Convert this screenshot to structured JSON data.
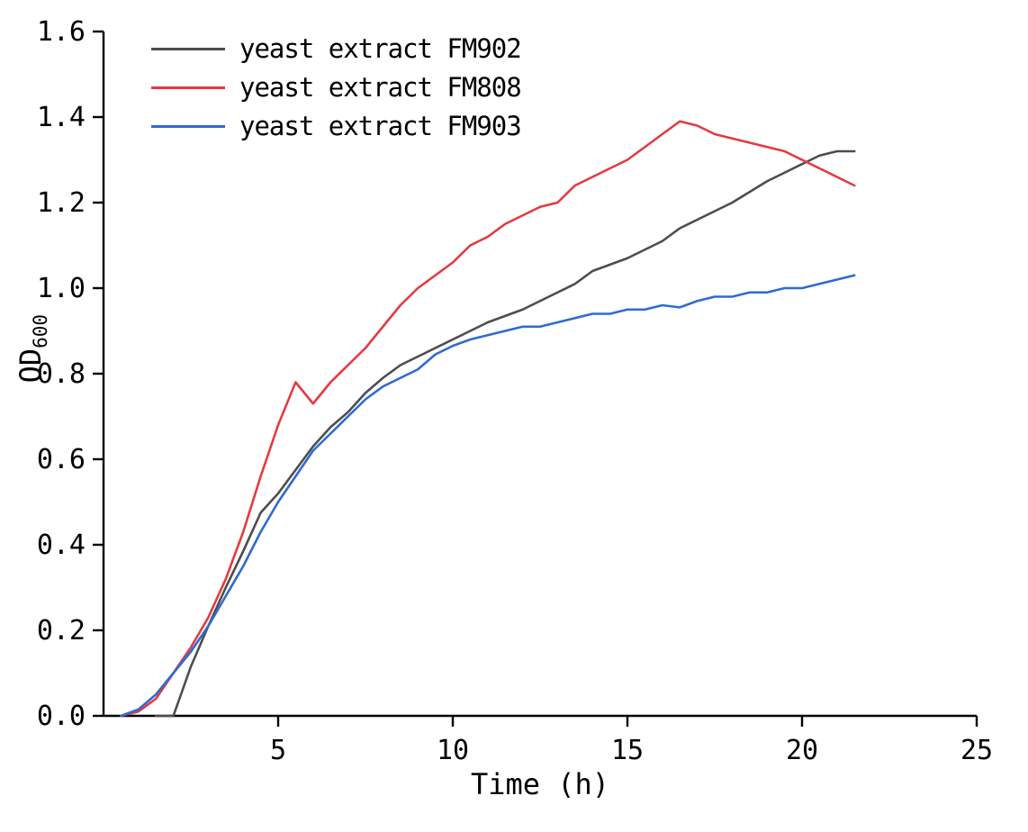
{
  "chart_data": {
    "type": "line",
    "title": "",
    "xlabel": "Time (h)",
    "ylabel": "OD",
    "ylabel_subscript": "600",
    "xlim": [
      0,
      25
    ],
    "ylim": [
      0.0,
      1.6
    ],
    "xticks": [
      5,
      10,
      15,
      20,
      25
    ],
    "xtick_labels": [
      "5",
      "10",
      "15",
      "20",
      "25"
    ],
    "yticks": [
      0.0,
      0.2,
      0.4,
      0.6,
      0.8,
      1.0,
      1.2,
      1.4,
      1.6
    ],
    "ytick_labels": [
      "0.0",
      "0.2",
      "0.4",
      "0.6",
      "0.8",
      "1.0",
      "1.2",
      "1.4",
      "1.6"
    ],
    "grid": false,
    "legend_position": "top-left",
    "axis_color": "#000000",
    "series": [
      {
        "name": "yeast extract FM902",
        "color": "#4d4d4d",
        "x": [
          1.5,
          2,
          2.5,
          3,
          3.5,
          4,
          4.5,
          5,
          5.5,
          6,
          6.5,
          7,
          7.5,
          8,
          8.5,
          9,
          9.5,
          10,
          10.5,
          11,
          11.5,
          12,
          12.5,
          13,
          13.5,
          14,
          14.5,
          15,
          15.5,
          16,
          16.5,
          17,
          17.5,
          18,
          18.5,
          19,
          19.5,
          20,
          20.5,
          21,
          21.5
        ],
        "y": [
          0,
          0,
          0.115,
          0.21,
          0.3,
          0.385,
          0.475,
          0.52,
          0.575,
          0.63,
          0.675,
          0.71,
          0.755,
          0.79,
          0.82,
          0.84,
          0.86,
          0.88,
          0.9,
          0.92,
          0.935,
          0.95,
          0.97,
          0.99,
          1.01,
          1.04,
          1.055,
          1.07,
          1.09,
          1.11,
          1.14,
          1.16,
          1.18,
          1.2,
          1.225,
          1.25,
          1.27,
          1.29,
          1.31,
          1.32,
          1.32
        ]
      },
      {
        "name": "yeast extract FM808",
        "color": "#e23b41",
        "x": [
          0.5,
          1,
          1.5,
          2,
          2.5,
          3,
          3.5,
          4,
          4.5,
          5,
          5.5,
          6,
          6.5,
          7,
          7.5,
          8,
          8.5,
          9,
          9.5,
          10,
          10.5,
          11,
          11.5,
          12,
          12.5,
          13,
          13.5,
          14,
          14.5,
          15,
          15.5,
          16,
          16.5,
          17,
          17.5,
          18,
          18.5,
          19,
          19.5,
          20,
          20.5,
          21,
          21.5
        ],
        "y": [
          0,
          0.01,
          0.04,
          0.1,
          0.16,
          0.23,
          0.32,
          0.43,
          0.56,
          0.68,
          0.78,
          0.73,
          0.78,
          0.82,
          0.86,
          0.91,
          0.96,
          1.0,
          1.03,
          1.06,
          1.1,
          1.12,
          1.15,
          1.17,
          1.19,
          1.2,
          1.24,
          1.26,
          1.28,
          1.3,
          1.33,
          1.36,
          1.39,
          1.38,
          1.36,
          1.35,
          1.34,
          1.33,
          1.32,
          1.3,
          1.28,
          1.26,
          1.24
        ]
      },
      {
        "name": "yeast extract FM903",
        "color": "#2f6bd0",
        "x": [
          0.5,
          1,
          1.5,
          2,
          2.5,
          3,
          3.5,
          4,
          4.5,
          5,
          5.5,
          6,
          6.5,
          7,
          7.5,
          8,
          8.5,
          9,
          9.5,
          10,
          10.5,
          11,
          11.5,
          12,
          12.5,
          13,
          13.5,
          14,
          14.5,
          15,
          15.5,
          16,
          16.5,
          17,
          17.5,
          18,
          18.5,
          19,
          19.5,
          20,
          20.5,
          21,
          21.5
        ],
        "y": [
          0,
          0.015,
          0.05,
          0.1,
          0.15,
          0.21,
          0.28,
          0.35,
          0.43,
          0.5,
          0.56,
          0.62,
          0.66,
          0.7,
          0.74,
          0.77,
          0.79,
          0.81,
          0.845,
          0.865,
          0.88,
          0.89,
          0.9,
          0.91,
          0.91,
          0.92,
          0.93,
          0.94,
          0.94,
          0.95,
          0.95,
          0.96,
          0.955,
          0.97,
          0.98,
          0.98,
          0.99,
          0.99,
          1.0,
          1.0,
          1.01,
          1.02,
          1.03
        ]
      }
    ]
  }
}
